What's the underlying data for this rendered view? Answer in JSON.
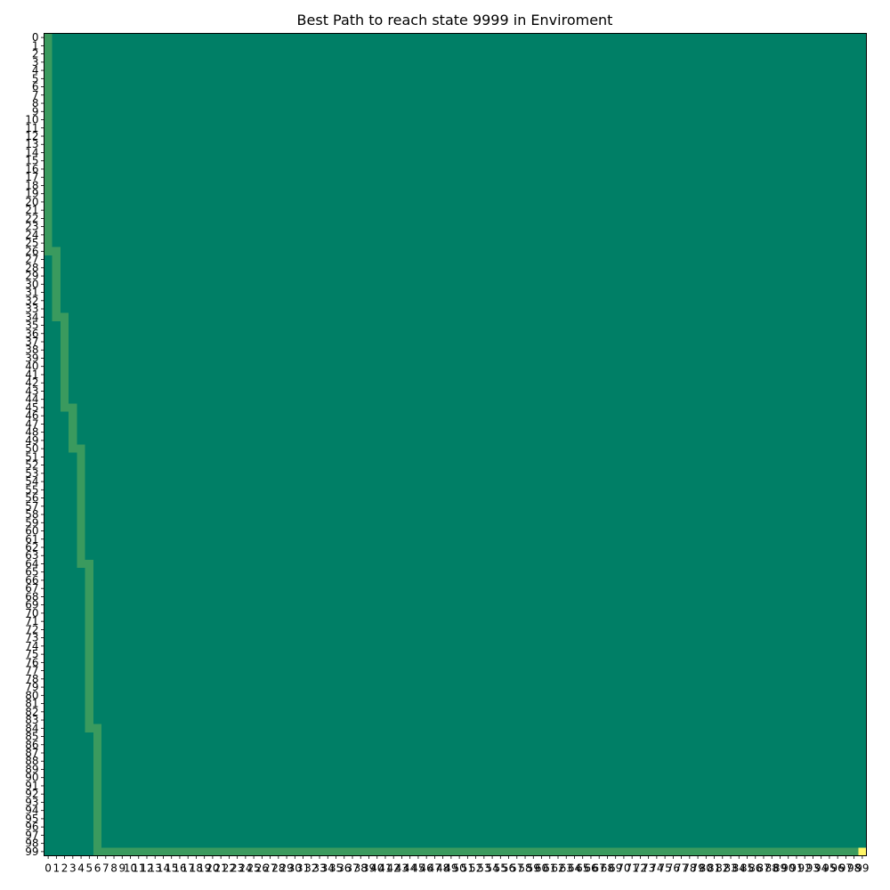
{
  "chart_data": {
    "type": "heatmap",
    "title": "Best Path to reach state 9999 in Enviroment",
    "xlabel": "",
    "ylabel": "",
    "grid": false,
    "x_ticks": [
      0,
      1,
      2,
      3,
      4,
      5,
      6,
      7,
      8,
      9,
      10,
      11,
      12,
      13,
      14,
      15,
      16,
      17,
      18,
      19,
      20,
      21,
      22,
      23,
      24,
      25,
      26,
      27,
      28,
      29,
      30,
      31,
      32,
      33,
      34,
      35,
      36,
      37,
      38,
      39,
      40,
      41,
      42,
      43,
      44,
      45,
      46,
      47,
      48,
      49,
      50,
      51,
      52,
      53,
      54,
      55,
      56,
      57,
      58,
      59,
      60,
      61,
      62,
      63,
      64,
      65,
      66,
      67,
      68,
      69,
      70,
      71,
      72,
      73,
      74,
      75,
      76,
      77,
      78,
      79,
      80,
      81,
      82,
      83,
      84,
      85,
      86,
      87,
      88,
      89,
      90,
      91,
      92,
      93,
      94,
      95,
      96,
      97,
      98,
      99
    ],
    "y_ticks": [
      0,
      1,
      2,
      3,
      4,
      5,
      6,
      7,
      8,
      9,
      10,
      11,
      12,
      13,
      14,
      15,
      16,
      17,
      18,
      19,
      20,
      21,
      22,
      23,
      24,
      25,
      26,
      27,
      28,
      29,
      30,
      31,
      32,
      33,
      34,
      35,
      36,
      37,
      38,
      39,
      40,
      41,
      42,
      43,
      44,
      45,
      46,
      47,
      48,
      49,
      50,
      51,
      52,
      53,
      54,
      55,
      56,
      57,
      58,
      59,
      60,
      61,
      62,
      63,
      64,
      65,
      66,
      67,
      68,
      69,
      70,
      71,
      72,
      73,
      74,
      75,
      76,
      77,
      78,
      79,
      80,
      81,
      82,
      83,
      84,
      85,
      86,
      87,
      88,
      89,
      90,
      91,
      92,
      93,
      94,
      95,
      96,
      97,
      98,
      99
    ],
    "rows": 100,
    "cols": 100,
    "path_segments": [
      {
        "col": 0,
        "row_start": 0,
        "row_end": 26
      },
      {
        "col": 1,
        "row_start": 26,
        "row_end": 34
      },
      {
        "col": 2,
        "row_start": 34,
        "row_end": 45
      },
      {
        "col": 3,
        "row_start": 45,
        "row_end": 50
      },
      {
        "col": 4,
        "row_start": 50,
        "row_end": 64
      },
      {
        "col": 5,
        "row_start": 64,
        "row_end": 84
      },
      {
        "col": 6,
        "row_start": 84,
        "row_end": 99
      }
    ],
    "bottom_path": {
      "row": 99,
      "col_start": 6,
      "col_end": 98
    },
    "goal_cell": {
      "row": 99,
      "col": 99
    },
    "colors": {
      "background": "#007f66",
      "path": "#3a9a5e",
      "goal": "#fff566"
    }
  }
}
